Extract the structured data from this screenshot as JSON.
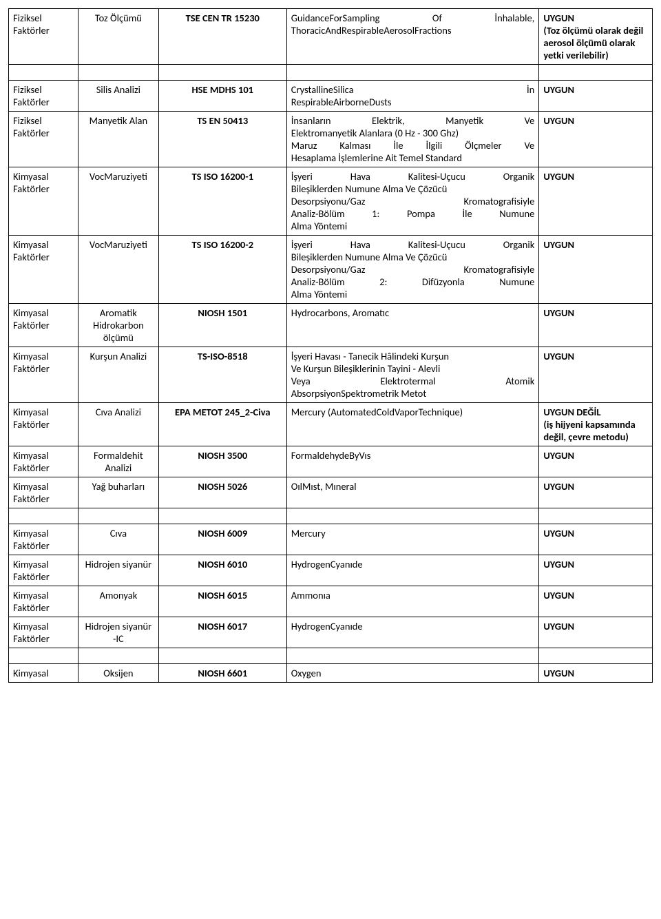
{
  "table": {
    "rows": [
      {
        "c1": "Fiziksel Faktörler",
        "c2": "Toz Ölçümü",
        "c3": "TSE CEN TR 15230",
        "c4": "GuidanceForSampling Of İnhalable, ThoracicAndRespirableAerosolFractions",
        "c5": "UYGUN\n(Toz ölçümü olarak değil aerosol ölçümü olarak yetki verilebilir)"
      },
      {
        "c1": "Fiziksel Faktörler",
        "c2": "Silis Analizi",
        "c3": "HSE MDHS 101",
        "c4_lines": [
          [
            "CrystallineSilica",
            "İn"
          ],
          [
            "RespirableAirborneDusts"
          ]
        ],
        "c5": "UYGUN"
      },
      {
        "c1": "Fiziksel Faktörler",
        "c2": "Manyetik Alan",
        "c3": "TS EN 50413",
        "c4_lines": [
          [
            "İnsanların",
            "Elektrik,",
            "Manyetik",
            "Ve"
          ],
          [
            "Elektromanyetik Alanlara (0 Hz - 300 Ghz)"
          ],
          [
            "Maruz",
            "Kalması",
            "İle",
            "İlgili",
            "Ölçmeler",
            "Ve"
          ],
          [
            "Hesaplama İşlemlerine Ait Temel Standard"
          ]
        ],
        "c5": "UYGUN"
      },
      {
        "c1": "Kimyasal Faktörler",
        "c2": "VocMaruziyeti",
        "c3": "TS  ISO 16200-1",
        "c4_lines": [
          [
            "İşyeri",
            "Hava",
            "Kalitesi-Uçucu",
            "Organik"
          ],
          [
            "Bileşiklerden Numune Alma Ve Çözücü"
          ],
          [
            "Desorpsiyonu/Gaz",
            "Kromatografisiyle"
          ],
          [
            "Analiz-Bölüm",
            "1:",
            "Pompa",
            "İle",
            "Numune"
          ],
          [
            "Alma Yöntemi"
          ]
        ],
        "c5": "UYGUN"
      },
      {
        "c1": "Kimyasal Faktörler",
        "c2": "VocMaruziyeti",
        "c3": "TS  ISO 16200-2",
        "c4_lines": [
          [
            "İşyeri",
            "Hava",
            "Kalitesi-Uçucu",
            "Organik"
          ],
          [
            "Bileşiklerden Numune Alma Ve Çözücü"
          ],
          [
            "Desorpsiyonu/Gaz",
            "Kromatografisiyle"
          ],
          [
            "Analiz-Bölüm",
            "2:",
            "Difüzyonla",
            "Numune"
          ],
          [
            "Alma Yöntemi"
          ]
        ],
        "c5": "UYGUN"
      },
      {
        "c1": "Kimyasal Faktörler",
        "c2": "Aromatik Hidrokarbon ölçümü",
        "c3": "NIOSH 1501",
        "c4": "Hydrocarbons, Aromatıc",
        "c5": "UYGUN"
      },
      {
        "c1": "Kimyasal Faktörler",
        "c2": "Kurşun Analizi",
        "c3": "TS-ISO-8518",
        "c4_lines": [
          [
            "İşyeri Havası - Tanecik Hâlindeki Kurşun"
          ],
          [
            "Ve Kurşun Bileşiklerinin Tayini - Alevli"
          ],
          [
            "Veya",
            "Elektrotermal",
            "Atomik"
          ],
          [
            "AbsorpsiyonSpektrometrik Metot"
          ]
        ],
        "c5": "UYGUN"
      },
      {
        "c1": "Kimyasal Faktörler",
        "c2": "Cıva Analizi",
        "c3": "EPA METOT 245_2-Civa",
        "c4": "Mercury (AutomatedColdVaporTechnique)",
        "c5": "UYGUN DEĞİL\n(iş hijyeni kapsamında değil, çevre metodu)"
      },
      {
        "c1": "Kimyasal Faktörler",
        "c2": "Formaldehit Analizi",
        "c3": "NIOSH 3500",
        "c4": "FormaldehydeByVıs",
        "c5": "UYGUN"
      },
      {
        "c1": "Kimyasal Faktörler",
        "c2": "Yağ buharları",
        "c3": "NIOSH 5026",
        "c4": "OılMıst, Mıneral",
        "c5": "UYGUN"
      },
      {
        "c1": "Kimyasal Faktörler",
        "c2": "Cıva",
        "c3": "NIOSH 6009",
        "c4": "Mercury",
        "c5": "UYGUN"
      },
      {
        "c1": "Kimyasal Faktörler",
        "c2": "Hidrojen siyanür",
        "c3": "NIOSH 6010",
        "c4": "HydrogenCyanıde",
        "c5": "UYGUN"
      },
      {
        "c1": "Kimyasal Faktörler",
        "c2": "Amonyak",
        "c3": "NIOSH 6015",
        "c4": "Ammonıa",
        "c5": "UYGUN"
      },
      {
        "c1": "Kimyasal Faktörler",
        "c2": "Hidrojen siyanür -IC",
        "c3": "NIOSH 6017",
        "c4": "HydrogenCyanıde",
        "c5": "UYGUN"
      },
      {
        "c1": "Kimyasal",
        "c2": "Oksijen",
        "c3": "NIOSH 6601",
        "c4": "Oxygen",
        "c5": "UYGUN"
      }
    ]
  }
}
